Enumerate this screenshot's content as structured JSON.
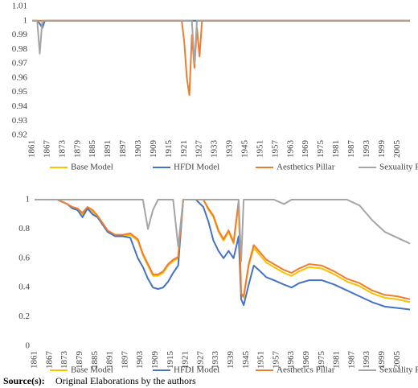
{
  "chart_data": [
    {
      "type": "line",
      "grid": false,
      "x": [
        1861,
        1862,
        1863,
        1864,
        1865,
        1866,
        1867,
        1918,
        1919,
        1920,
        1921,
        1922,
        1923,
        1924,
        1925,
        1926,
        1927,
        1928,
        1929,
        2010
      ],
      "xlim": [
        1861,
        2010
      ],
      "xticks": [
        1861,
        1867,
        1873,
        1879,
        1885,
        1891,
        1897,
        1903,
        1909,
        1915,
        1921,
        1927,
        1933,
        1939,
        1945,
        1951,
        1957,
        1963,
        1969,
        1975,
        1981,
        1987,
        1993,
        1999,
        2005
      ],
      "ylim": [
        0.92,
        1.01
      ],
      "yticks": [
        0.92,
        0.93,
        0.94,
        0.95,
        0.96,
        0.97,
        0.98,
        0.99,
        1,
        1.01
      ],
      "series": [
        {
          "name": "Base Model",
          "color": "#FFC000",
          "values": [
            1,
            1,
            1,
            0.998,
            0.995,
            1,
            1,
            1,
            1,
            1,
            1,
            1,
            1,
            1,
            1,
            1,
            1,
            1,
            1,
            1
          ]
        },
        {
          "name": "HFDI Model",
          "color": "#4472C4",
          "values": [
            1,
            1,
            1,
            0.998,
            0.995,
            1,
            1,
            1,
            1,
            1,
            1,
            1,
            1,
            1,
            1,
            1,
            1,
            1,
            1,
            1
          ]
        },
        {
          "name": "Aesthetics Pillar",
          "color": "#ED7D31",
          "values": [
            1,
            1,
            1,
            1,
            1,
            1,
            1,
            1,
            1,
            1,
            0.985,
            0.96,
            0.948,
            0.99,
            0.967,
            0.995,
            0.975,
            1,
            1,
            1
          ]
        },
        {
          "name": "Sexuality Pillar",
          "color": "#A5A5A5",
          "values": [
            1,
            1,
            1,
            0.977,
            1,
            1,
            1,
            1,
            1,
            1,
            1,
            1,
            1,
            1,
            0.97,
            1,
            1,
            1,
            1,
            1
          ]
        }
      ]
    },
    {
      "type": "line",
      "grid": false,
      "x": [
        1861,
        1870,
        1874,
        1876,
        1878,
        1880,
        1882,
        1884,
        1886,
        1888,
        1890,
        1893,
        1896,
        1899,
        1902,
        1904,
        1906,
        1908,
        1910,
        1912,
        1914,
        1916,
        1918,
        1920,
        1925,
        1928,
        1930,
        1932,
        1934,
        1936,
        1938,
        1940,
        1942,
        1943,
        1944,
        1946,
        1948,
        1950,
        1953,
        1956,
        1960,
        1963,
        1966,
        1970,
        1975,
        1980,
        1985,
        1990,
        1995,
        2000,
        2005,
        2010
      ],
      "xlim": [
        1861,
        2010
      ],
      "xticks": [
        1861,
        1867,
        1873,
        1879,
        1885,
        1891,
        1897,
        1903,
        1909,
        1915,
        1921,
        1927,
        1933,
        1939,
        1945,
        1951,
        1957,
        1963,
        1969,
        1975,
        1981,
        1987,
        1993,
        1999,
        2005
      ],
      "ylim": [
        0,
        1
      ],
      "yticks": [
        0,
        0.2,
        0.4,
        0.6,
        0.8,
        1
      ],
      "series": [
        {
          "name": "Base Model",
          "color": "#FFC000",
          "values": [
            1,
            1,
            0.97,
            0.94,
            0.93,
            0.9,
            0.94,
            0.92,
            0.88,
            0.83,
            0.78,
            0.75,
            0.75,
            0.76,
            0.72,
            0.62,
            0.55,
            0.48,
            0.48,
            0.5,
            0.55,
            0.58,
            0.6,
            1,
            1,
            1,
            0.93,
            0.88,
            0.78,
            0.72,
            0.78,
            0.7,
            0.98,
            0.35,
            0.33,
            0.55,
            0.67,
            0.63,
            0.57,
            0.54,
            0.5,
            0.48,
            0.51,
            0.54,
            0.53,
            0.49,
            0.44,
            0.41,
            0.36,
            0.33,
            0.32,
            0.3
          ]
        },
        {
          "name": "HFDI Model",
          "color": "#4472C4",
          "values": [
            1,
            1,
            0.97,
            0.94,
            0.93,
            0.88,
            0.94,
            0.9,
            0.88,
            0.83,
            0.78,
            0.75,
            0.75,
            0.74,
            0.6,
            0.54,
            0.46,
            0.4,
            0.39,
            0.4,
            0.44,
            0.5,
            0.55,
            1,
            1,
            0.95,
            0.85,
            0.72,
            0.65,
            0.6,
            0.65,
            0.6,
            0.75,
            0.32,
            0.28,
            0.42,
            0.55,
            0.52,
            0.47,
            0.45,
            0.42,
            0.4,
            0.43,
            0.45,
            0.45,
            0.42,
            0.38,
            0.34,
            0.3,
            0.27,
            0.26,
            0.25
          ]
        },
        {
          "name": "Aesthetics Pillar",
          "color": "#ED7D31",
          "values": [
            1,
            1,
            0.97,
            0.95,
            0.94,
            0.91,
            0.95,
            0.93,
            0.89,
            0.84,
            0.79,
            0.76,
            0.76,
            0.77,
            0.73,
            0.63,
            0.56,
            0.49,
            0.49,
            0.51,
            0.56,
            0.59,
            0.61,
            1,
            1,
            1,
            0.94,
            0.89,
            0.79,
            0.73,
            0.79,
            0.71,
            0.99,
            0.36,
            0.34,
            0.56,
            0.69,
            0.65,
            0.59,
            0.56,
            0.52,
            0.5,
            0.53,
            0.56,
            0.55,
            0.51,
            0.46,
            0.43,
            0.38,
            0.35,
            0.34,
            0.32
          ]
        },
        {
          "name": "Sexuality Pillar",
          "color": "#A5A5A5",
          "values": [
            1,
            1,
            1,
            1,
            1,
            1,
            1,
            1,
            1,
            1,
            1,
            1,
            1,
            1,
            1,
            1,
            0.8,
            0.93,
            1,
            1,
            1,
            1,
            0.68,
            1,
            1,
            1,
            1,
            1,
            1,
            1,
            1,
            1,
            1,
            0.58,
            1,
            1,
            1,
            1,
            1,
            1,
            0.97,
            1,
            1,
            1,
            1,
            1,
            1,
            0.96,
            0.86,
            0.78,
            0.74,
            0.7
          ]
        }
      ]
    }
  ],
  "source": {
    "label": "Source(s):",
    "text": "Original Elaborations by the authors"
  }
}
